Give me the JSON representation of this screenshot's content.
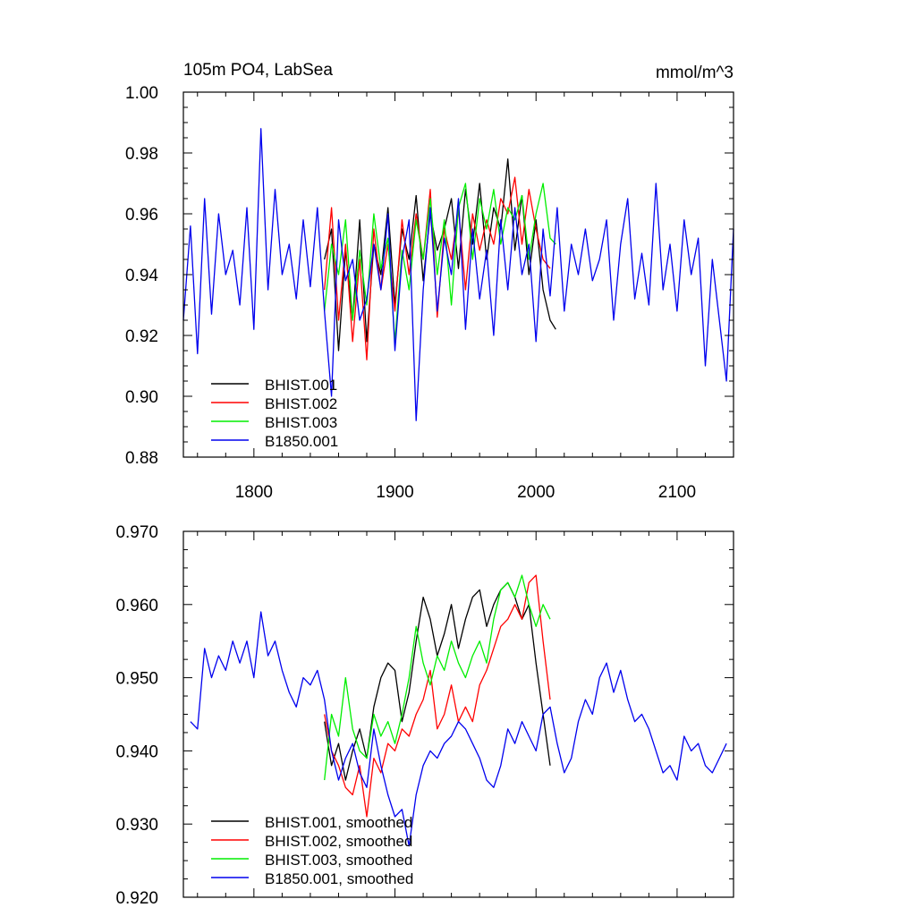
{
  "figure": {
    "title_left": "105m PO4, LabSea",
    "title_right": "mmol/m^3"
  },
  "chart_data": [
    {
      "type": "line",
      "id": "top-panel",
      "title": "105m PO4, LabSea",
      "units_label": "mmol/m^3",
      "xlim": [
        1750,
        2140
      ],
      "ylim": [
        0.88,
        1.0
      ],
      "x_ticks": [
        1800,
        1900,
        2000,
        2100
      ],
      "x_tick_labels": [
        "1800",
        "1900",
        "2000",
        "2100"
      ],
      "y_ticks": [
        0.88,
        0.9,
        0.92,
        0.94,
        0.96,
        0.98,
        1.0
      ],
      "y_tick_labels": [
        "0.88",
        "0.90",
        "0.92",
        "0.94",
        "0.96",
        "0.98",
        "1.00"
      ],
      "legend_position": "bottom-left",
      "series": [
        {
          "name": "BHIST.001",
          "color": "#000000",
          "x": [
            1850,
            1855,
            1860,
            1865,
            1870,
            1875,
            1880,
            1885,
            1890,
            1895,
            1900,
            1905,
            1910,
            1915,
            1920,
            1925,
            1930,
            1935,
            1940,
            1945,
            1950,
            1955,
            1960,
            1965,
            1970,
            1975,
            1980,
            1985,
            1990,
            1995,
            2000,
            2005,
            2010,
            2014
          ],
          "values": [
            0.945,
            0.955,
            0.915,
            0.948,
            0.925,
            0.958,
            0.918,
            0.95,
            0.94,
            0.962,
            0.93,
            0.955,
            0.945,
            0.966,
            0.938,
            0.96,
            0.948,
            0.955,
            0.965,
            0.942,
            0.968,
            0.95,
            0.97,
            0.945,
            0.962,
            0.955,
            0.978,
            0.948,
            0.966,
            0.94,
            0.958,
            0.935,
            0.925,
            0.922
          ]
        },
        {
          "name": "BHIST.002",
          "color": "#ff0000",
          "x": [
            1850,
            1855,
            1860,
            1865,
            1870,
            1875,
            1880,
            1885,
            1890,
            1895,
            1900,
            1905,
            1910,
            1915,
            1920,
            1925,
            1930,
            1935,
            1940,
            1945,
            1950,
            1955,
            1960,
            1965,
            1970,
            1975,
            1980,
            1985,
            1990,
            1995,
            2000,
            2005,
            2010
          ],
          "values": [
            0.935,
            0.962,
            0.925,
            0.95,
            0.918,
            0.945,
            0.912,
            0.955,
            0.935,
            0.95,
            0.928,
            0.958,
            0.94,
            0.96,
            0.945,
            0.968,
            0.926,
            0.955,
            0.945,
            0.962,
            0.935,
            0.96,
            0.948,
            0.958,
            0.95,
            0.965,
            0.96,
            0.972,
            0.95,
            0.968,
            0.955,
            0.945,
            0.942
          ]
        },
        {
          "name": "BHIST.003",
          "color": "#00ee00",
          "x": [
            1850,
            1855,
            1860,
            1865,
            1870,
            1875,
            1880,
            1885,
            1890,
            1895,
            1900,
            1905,
            1910,
            1915,
            1920,
            1925,
            1930,
            1935,
            1940,
            1945,
            1950,
            1955,
            1960,
            1965,
            1970,
            1975,
            1980,
            1985,
            1990,
            1995,
            2000,
            2005,
            2010,
            2014
          ],
          "values": [
            0.928,
            0.95,
            0.94,
            0.958,
            0.925,
            0.948,
            0.93,
            0.96,
            0.942,
            0.952,
            0.918,
            0.948,
            0.935,
            0.958,
            0.945,
            0.965,
            0.94,
            0.958,
            0.93,
            0.962,
            0.97,
            0.945,
            0.965,
            0.955,
            0.968,
            0.95,
            0.962,
            0.958,
            0.966,
            0.945,
            0.96,
            0.97,
            0.952,
            0.95
          ]
        },
        {
          "name": "B1850.001",
          "color": "#0000ee",
          "x": [
            1750,
            1755,
            1760,
            1765,
            1770,
            1775,
            1780,
            1785,
            1790,
            1795,
            1800,
            1805,
            1810,
            1815,
            1820,
            1825,
            1830,
            1835,
            1840,
            1845,
            1850,
            1855,
            1860,
            1865,
            1870,
            1875,
            1880,
            1885,
            1890,
            1895,
            1900,
            1905,
            1910,
            1915,
            1920,
            1925,
            1930,
            1935,
            1940,
            1945,
            1950,
            1955,
            1960,
            1965,
            1970,
            1975,
            1980,
            1985,
            1990,
            1995,
            2000,
            2005,
            2010,
            2015,
            2020,
            2025,
            2030,
            2035,
            2040,
            2045,
            2050,
            2055,
            2060,
            2065,
            2070,
            2075,
            2080,
            2085,
            2090,
            2095,
            2100,
            2105,
            2110,
            2115,
            2120,
            2125,
            2130,
            2135,
            2140
          ],
          "values": [
            0.925,
            0.956,
            0.914,
            0.965,
            0.927,
            0.96,
            0.94,
            0.948,
            0.93,
            0.962,
            0.922,
            0.988,
            0.935,
            0.968,
            0.94,
            0.95,
            0.932,
            0.958,
            0.936,
            0.962,
            0.928,
            0.9,
            0.958,
            0.938,
            0.945,
            0.925,
            0.932,
            0.95,
            0.935,
            0.96,
            0.915,
            0.945,
            0.958,
            0.892,
            0.935,
            0.962,
            0.928,
            0.952,
            0.94,
            0.965,
            0.922,
            0.955,
            0.932,
            0.948,
            0.92,
            0.958,
            0.935,
            0.962,
            0.94,
            0.95,
            0.918,
            0.955,
            0.933,
            0.962,
            0.928,
            0.95,
            0.94,
            0.955,
            0.938,
            0.945,
            0.958,
            0.925,
            0.95,
            0.965,
            0.932,
            0.947,
            0.93,
            0.97,
            0.935,
            0.95,
            0.928,
            0.958,
            0.94,
            0.952,
            0.91,
            0.945,
            0.925,
            0.905,
            0.955
          ]
        }
      ]
    },
    {
      "type": "line",
      "id": "bottom-panel",
      "xlim": [
        1750,
        2140
      ],
      "ylim": [
        0.92,
        0.97
      ],
      "x_ticks": [
        1800,
        1900,
        2000,
        2100
      ],
      "y_ticks": [
        0.92,
        0.93,
        0.94,
        0.95,
        0.96,
        0.97
      ],
      "y_tick_labels": [
        "0.920",
        "0.930",
        "0.940",
        "0.950",
        "0.960",
        "0.970"
      ],
      "legend_position": "bottom-left",
      "series": [
        {
          "name": "BHIST.001, smoothed",
          "color": "#000000",
          "x": [
            1850,
            1855,
            1860,
            1865,
            1870,
            1875,
            1880,
            1885,
            1890,
            1895,
            1900,
            1905,
            1910,
            1915,
            1920,
            1925,
            1930,
            1935,
            1940,
            1945,
            1950,
            1955,
            1960,
            1965,
            1970,
            1975,
            1980,
            1985,
            1990,
            1995,
            2000,
            2005,
            2010
          ],
          "values": [
            0.944,
            0.938,
            0.941,
            0.936,
            0.94,
            0.943,
            0.939,
            0.946,
            0.95,
            0.952,
            0.951,
            0.944,
            0.948,
            0.955,
            0.961,
            0.958,
            0.953,
            0.956,
            0.96,
            0.954,
            0.958,
            0.961,
            0.962,
            0.957,
            0.96,
            0.962,
            0.963,
            0.961,
            0.958,
            0.96,
            0.952,
            0.945,
            0.938
          ]
        },
        {
          "name": "BHIST.002, smoothed",
          "color": "#ff0000",
          "x": [
            1850,
            1855,
            1860,
            1865,
            1870,
            1875,
            1880,
            1885,
            1890,
            1895,
            1900,
            1905,
            1910,
            1915,
            1920,
            1925,
            1930,
            1935,
            1940,
            1945,
            1950,
            1955,
            1960,
            1965,
            1970,
            1975,
            1980,
            1985,
            1990,
            1995,
            2000,
            2005,
            2010
          ],
          "values": [
            0.945,
            0.94,
            0.938,
            0.935,
            0.934,
            0.938,
            0.931,
            0.939,
            0.937,
            0.941,
            0.94,
            0.943,
            0.942,
            0.945,
            0.947,
            0.951,
            0.943,
            0.945,
            0.949,
            0.944,
            0.946,
            0.944,
            0.949,
            0.951,
            0.954,
            0.957,
            0.958,
            0.96,
            0.958,
            0.963,
            0.964,
            0.955,
            0.947
          ]
        },
        {
          "name": "BHIST.003, smoothed",
          "color": "#00ee00",
          "x": [
            1850,
            1855,
            1860,
            1865,
            1870,
            1875,
            1880,
            1885,
            1890,
            1895,
            1900,
            1905,
            1910,
            1915,
            1920,
            1925,
            1930,
            1935,
            1940,
            1945,
            1950,
            1955,
            1960,
            1965,
            1970,
            1975,
            1980,
            1985,
            1990,
            1995,
            2000,
            2005,
            2010
          ],
          "values": [
            0.936,
            0.945,
            0.942,
            0.95,
            0.943,
            0.94,
            0.939,
            0.945,
            0.942,
            0.944,
            0.941,
            0.945,
            0.95,
            0.957,
            0.952,
            0.949,
            0.953,
            0.951,
            0.955,
            0.952,
            0.95,
            0.953,
            0.955,
            0.952,
            0.958,
            0.962,
            0.963,
            0.961,
            0.964,
            0.96,
            0.957,
            0.96,
            0.958
          ]
        },
        {
          "name": "B1850.001, smoothed",
          "color": "#0000ee",
          "x": [
            1755,
            1760,
            1765,
            1770,
            1775,
            1780,
            1785,
            1790,
            1795,
            1800,
            1805,
            1810,
            1815,
            1820,
            1825,
            1830,
            1835,
            1840,
            1845,
            1850,
            1855,
            1860,
            1865,
            1870,
            1875,
            1880,
            1885,
            1890,
            1895,
            1900,
            1905,
            1910,
            1915,
            1920,
            1925,
            1930,
            1935,
            1940,
            1945,
            1950,
            1955,
            1960,
            1965,
            1970,
            1975,
            1980,
            1985,
            1990,
            1995,
            2000,
            2005,
            2010,
            2015,
            2020,
            2025,
            2030,
            2035,
            2040,
            2045,
            2050,
            2055,
            2060,
            2065,
            2070,
            2075,
            2080,
            2085,
            2090,
            2095,
            2100,
            2105,
            2110,
            2115,
            2120,
            2125,
            2130,
            2135
          ],
          "values": [
            0.944,
            0.943,
            0.954,
            0.95,
            0.953,
            0.951,
            0.955,
            0.952,
            0.955,
            0.95,
            0.959,
            0.953,
            0.955,
            0.951,
            0.948,
            0.946,
            0.95,
            0.949,
            0.951,
            0.947,
            0.94,
            0.936,
            0.939,
            0.941,
            0.937,
            0.935,
            0.943,
            0.938,
            0.934,
            0.931,
            0.932,
            0.927,
            0.934,
            0.938,
            0.94,
            0.939,
            0.941,
            0.942,
            0.944,
            0.943,
            0.941,
            0.939,
            0.936,
            0.935,
            0.938,
            0.943,
            0.941,
            0.944,
            0.942,
            0.94,
            0.945,
            0.946,
            0.941,
            0.937,
            0.939,
            0.944,
            0.947,
            0.945,
            0.95,
            0.952,
            0.948,
            0.951,
            0.947,
            0.944,
            0.945,
            0.943,
            0.94,
            0.937,
            0.938,
            0.936,
            0.942,
            0.94,
            0.941,
            0.938,
            0.937,
            0.939,
            0.941
          ]
        }
      ]
    }
  ]
}
